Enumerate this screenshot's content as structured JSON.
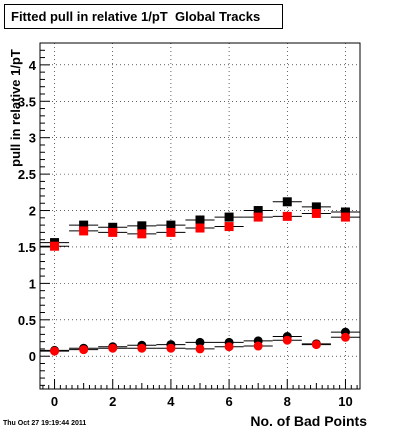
{
  "title": "Fitted pull in relative 1/pT  Global Tracks",
  "timestamp": "Thu Oct 27 19:19:44 2011",
  "chart_data": {
    "type": "scatter",
    "title": "Fitted pull in relative 1/pT  Global Tracks",
    "xlabel": "No. of Bad Points",
    "ylabel": "pull in relative 1/pT",
    "xlim": [
      -0.5,
      10.5
    ],
    "ylim": [
      -0.45,
      4.3
    ],
    "x_ticks": [
      0,
      2,
      4,
      6,
      8,
      10
    ],
    "y_ticks": [
      0,
      0.5,
      1,
      1.5,
      2,
      2.5,
      3,
      3.5,
      4
    ],
    "y_tick_labels": [
      "0",
      "0.5",
      "1",
      "1.5",
      "2",
      "2.5",
      "3",
      "3.5",
      "4"
    ],
    "grid": true,
    "x_error": 0.5,
    "series": [
      {
        "marker": "square",
        "color": "#000000",
        "x": [
          0,
          1,
          2,
          3,
          4,
          5,
          6,
          7,
          8,
          9,
          10
        ],
        "y": [
          1.56,
          1.8,
          1.77,
          1.79,
          1.8,
          1.87,
          1.91,
          2.0,
          2.12,
          2.05,
          1.98
        ]
      },
      {
        "marker": "square",
        "color": "#ff0000",
        "x": [
          0,
          1,
          2,
          3,
          4,
          5,
          6,
          7,
          8,
          9,
          10
        ],
        "y": [
          1.51,
          1.72,
          1.7,
          1.68,
          1.7,
          1.76,
          1.78,
          1.91,
          1.92,
          1.96,
          1.91
        ]
      },
      {
        "marker": "circle",
        "color": "#000000",
        "x": [
          0,
          1,
          2,
          3,
          4,
          5,
          6,
          7,
          8,
          9,
          10
        ],
        "y": [
          0.08,
          0.11,
          0.13,
          0.15,
          0.16,
          0.19,
          0.19,
          0.21,
          0.27,
          0.17,
          0.33
        ]
      },
      {
        "marker": "circle",
        "color": "#ff0000",
        "x": [
          0,
          1,
          2,
          3,
          4,
          5,
          6,
          7,
          8,
          9,
          10
        ],
        "y": [
          0.07,
          0.09,
          0.11,
          0.11,
          0.11,
          0.1,
          0.13,
          0.14,
          0.22,
          0.16,
          0.26
        ]
      }
    ]
  }
}
